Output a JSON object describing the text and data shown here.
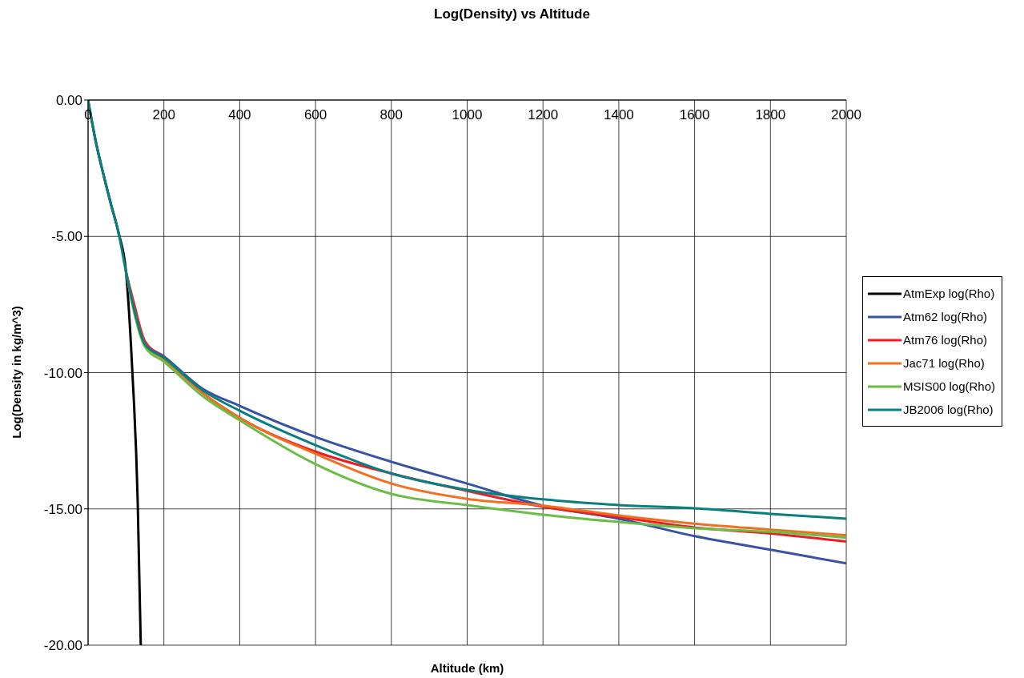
{
  "chart_data": {
    "type": "line",
    "title": "Log(Density) vs Altitude",
    "xlabel": "Altitude (km)",
    "ylabel": "Log(Density in kg/m^3)",
    "x": [
      0,
      20,
      40,
      60,
      80,
      100,
      120,
      150,
      200,
      300,
      400,
      600,
      800,
      1000,
      1200,
      1400,
      1600,
      1800,
      2000
    ],
    "series": [
      {
        "name": "AtmExp log(Rho)",
        "color": "#000000",
        "x": [
          0,
          20,
          40,
          60,
          80,
          100,
          116,
          131,
          139
        ],
        "values": [
          0,
          -1.5,
          -2.7,
          -3.8,
          -4.85,
          -6.3,
          -9.75,
          -14.77,
          -20
        ]
      },
      {
        "name": "Atm62 log(Rho)",
        "color": "#3953a4",
        "values": [
          null,
          null,
          null,
          null,
          null,
          -6.3,
          -7.6,
          -8.9,
          -9.4,
          -10.57,
          -11.22,
          -12.36,
          -13.27,
          -14.07,
          -14.88,
          -15.36,
          -16.0,
          -16.5,
          -17.0
        ]
      },
      {
        "name": "Atm76 log(Rho)",
        "color": "#ed1c24",
        "values": [
          null,
          null,
          null,
          null,
          null,
          -6.3,
          -7.4,
          -8.85,
          -9.45,
          -10.72,
          -11.66,
          -12.9,
          -13.7,
          -14.34,
          -14.92,
          -15.3,
          -15.68,
          -15.9,
          -16.2
        ]
      },
      {
        "name": "Jac71 log(Rho)",
        "color": "#f26f21",
        "values": [
          null,
          null,
          null,
          null,
          null,
          -6.3,
          -7.6,
          -8.95,
          -9.5,
          -10.72,
          -11.66,
          -12.98,
          -14.07,
          -14.63,
          -14.88,
          -15.24,
          -15.54,
          -15.76,
          -15.97
        ]
      },
      {
        "name": "MSIS00 log(Rho)",
        "color": "#6abd45",
        "values": [
          null,
          null,
          null,
          null,
          null,
          -6.3,
          -7.7,
          -9.05,
          -9.6,
          -10.84,
          -11.75,
          -13.36,
          -14.45,
          -14.86,
          -15.21,
          -15.48,
          -15.71,
          -15.84,
          -16.06
        ]
      },
      {
        "name": "JB2006 log(Rho)",
        "color": "#0a7f7f",
        "values": [
          0,
          -1.5,
          -2.7,
          -3.8,
          -4.85,
          -6.3,
          -7.6,
          -8.96,
          -9.45,
          -10.63,
          -11.4,
          -12.66,
          -13.7,
          -14.3,
          -14.65,
          -14.86,
          -14.98,
          -15.18,
          -15.36
        ]
      }
    ],
    "xlim": [
      0,
      2000
    ],
    "xticks": [
      0,
      200,
      400,
      600,
      800,
      1000,
      1200,
      1400,
      1600,
      1800,
      2000
    ],
    "ylim": [
      -20,
      0
    ],
    "yticks": [
      {
        "value": 0,
        "label": "0.00"
      },
      {
        "value": -5,
        "label": "-5.00"
      },
      {
        "value": -10,
        "label": "-10.00"
      },
      {
        "value": -15,
        "label": "-15.00"
      },
      {
        "value": -20,
        "label": "-20.00"
      }
    ],
    "grid": true,
    "legend": "right"
  }
}
